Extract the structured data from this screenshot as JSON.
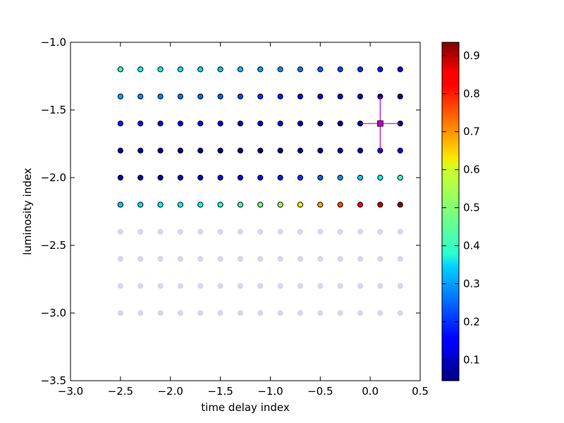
{
  "chart_data": {
    "type": "scatter",
    "xlabel": "time delay index",
    "ylabel": "luminosity index",
    "xlim": [
      -3.0,
      0.5
    ],
    "ylim": [
      -3.5,
      -1.0
    ],
    "xticks": [
      "−3.0",
      "−2.5",
      "−2.0",
      "−1.5",
      "−1.0",
      "−0.5",
      "0.0",
      "0.5"
    ],
    "yticks": [
      "−1.0",
      "−1.5",
      "−2.0",
      "−2.5",
      "−3.0",
      "−3.5"
    ],
    "grid": false,
    "colormap": "jet",
    "colorbar": {
      "range": [
        0.045,
        0.935
      ],
      "ticks": [
        "0.1",
        "0.2",
        "0.3",
        "0.4",
        "0.5",
        "0.6",
        "0.7",
        "0.8",
        "0.9"
      ]
    },
    "x": [
      -2.5,
      -2.3,
      -2.1,
      -1.9,
      -1.7,
      -1.5,
      -1.3,
      -1.1,
      -0.9,
      -0.7,
      -0.5,
      -0.3,
      -0.1,
      0.1,
      0.3
    ],
    "rows": [
      {
        "y": -1.2,
        "values": [
          0.42,
          0.38,
          0.37,
          0.36,
          0.35,
          0.33,
          0.32,
          0.3,
          0.28,
          0.26,
          0.24,
          0.22,
          0.2,
          0.18,
          0.15
        ]
      },
      {
        "y": -1.4,
        "values": [
          0.3,
          0.28,
          0.27,
          0.26,
          0.25,
          0.24,
          0.22,
          0.2,
          0.18,
          0.16,
          0.14,
          0.12,
          0.1,
          0.08,
          0.06
        ]
      },
      {
        "y": -1.6,
        "values": [
          0.18,
          0.17,
          0.16,
          0.15,
          0.14,
          0.13,
          0.12,
          0.11,
          0.1,
          0.09,
          0.08,
          0.07,
          0.06,
          0.05,
          0.05
        ]
      },
      {
        "y": -1.8,
        "values": [
          0.09,
          0.08,
          0.08,
          0.07,
          0.07,
          0.06,
          0.06,
          0.06,
          0.06,
          0.07,
          0.08,
          0.09,
          0.1,
          0.12,
          0.15
        ]
      },
      {
        "y": -2.0,
        "values": [
          0.08,
          0.08,
          0.09,
          0.1,
          0.11,
          0.12,
          0.14,
          0.16,
          0.18,
          0.2,
          0.24,
          0.28,
          0.33,
          0.37,
          0.43
        ]
      },
      {
        "y": -2.2,
        "values": [
          0.33,
          0.35,
          0.37,
          0.38,
          0.4,
          0.42,
          0.45,
          0.48,
          0.52,
          0.58,
          0.68,
          0.76,
          0.84,
          0.89,
          0.93
        ]
      }
    ],
    "faded_rows_y": [
      -2.4,
      -2.6,
      -2.8,
      -3.0
    ],
    "marker": {
      "x": 0.1,
      "y": -1.6,
      "xerr": 0.2,
      "yerr": 0.2,
      "color": "#bf00bf"
    }
  }
}
